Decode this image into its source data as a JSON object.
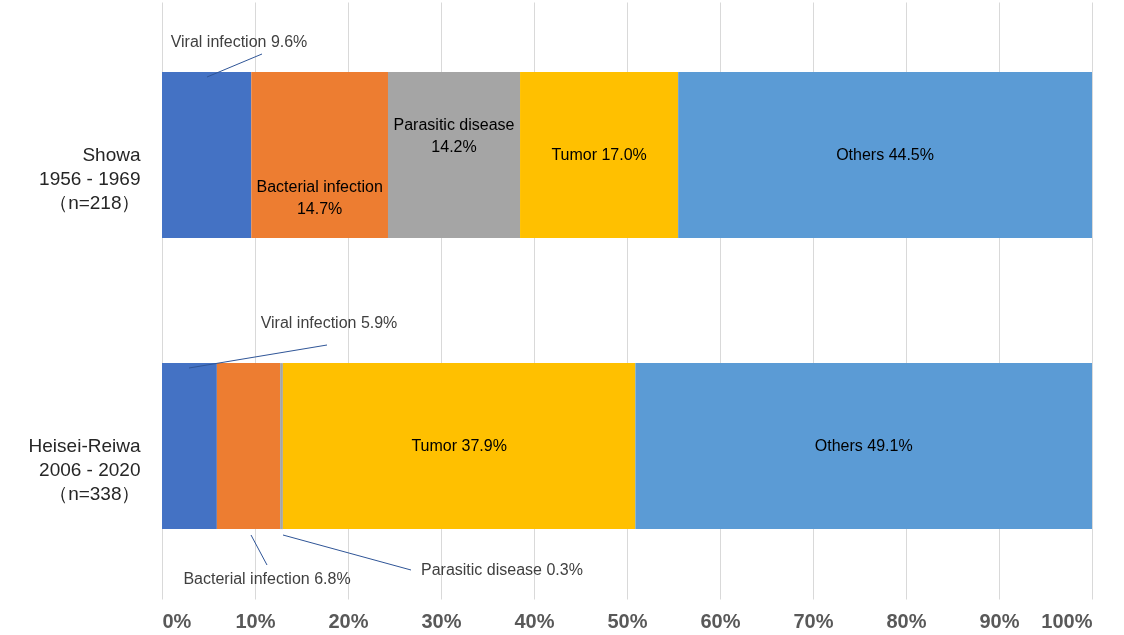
{
  "chart_data": {
    "type": "bar",
    "orientation": "horizontal",
    "stacked": true,
    "categories": [
      "Showa\n1956 - 1969\n（n=218）",
      "Heisei-Reiwa\n2006 - 2020\n（n=338）"
    ],
    "series": [
      {
        "name": "Viral infection",
        "color": "#4472c4",
        "values": [
          9.6,
          5.9
        ],
        "value_labels": [
          "9.6%",
          "5.9%"
        ]
      },
      {
        "name": "Bacterial infection",
        "color": "#ed7d31",
        "values": [
          14.7,
          6.8
        ],
        "value_labels": [
          "14.7%",
          "6.8%"
        ]
      },
      {
        "name": "Parasitic disease",
        "color": "#a5a5a5",
        "values": [
          14.2,
          0.3
        ],
        "value_labels": [
          "14.2%",
          "0.3%"
        ]
      },
      {
        "name": "Tumor",
        "color": "#ffc000",
        "values": [
          17.0,
          37.9
        ],
        "value_labels": [
          "17.0%",
          "37.9%"
        ]
      },
      {
        "name": "Others",
        "color": "#5b9bd5",
        "values": [
          44.5,
          49.1
        ],
        "value_labels": [
          "44.5%",
          "49.1%"
        ]
      }
    ],
    "xlim": [
      0,
      100
    ],
    "xticks": [
      {
        "value": 0,
        "label": "0%"
      },
      {
        "value": 10,
        "label": "10%"
      },
      {
        "value": 20,
        "label": "20%"
      },
      {
        "value": 30,
        "label": "30%"
      },
      {
        "value": 40,
        "label": "40%"
      },
      {
        "value": 50,
        "label": "50%"
      },
      {
        "value": 60,
        "label": "60%"
      },
      {
        "value": 70,
        "label": "70%"
      },
      {
        "value": 80,
        "label": "80%"
      },
      {
        "value": 90,
        "label": "90%"
      },
      {
        "value": 100,
        "label": "100%"
      }
    ],
    "grid": "x",
    "legend": false
  }
}
